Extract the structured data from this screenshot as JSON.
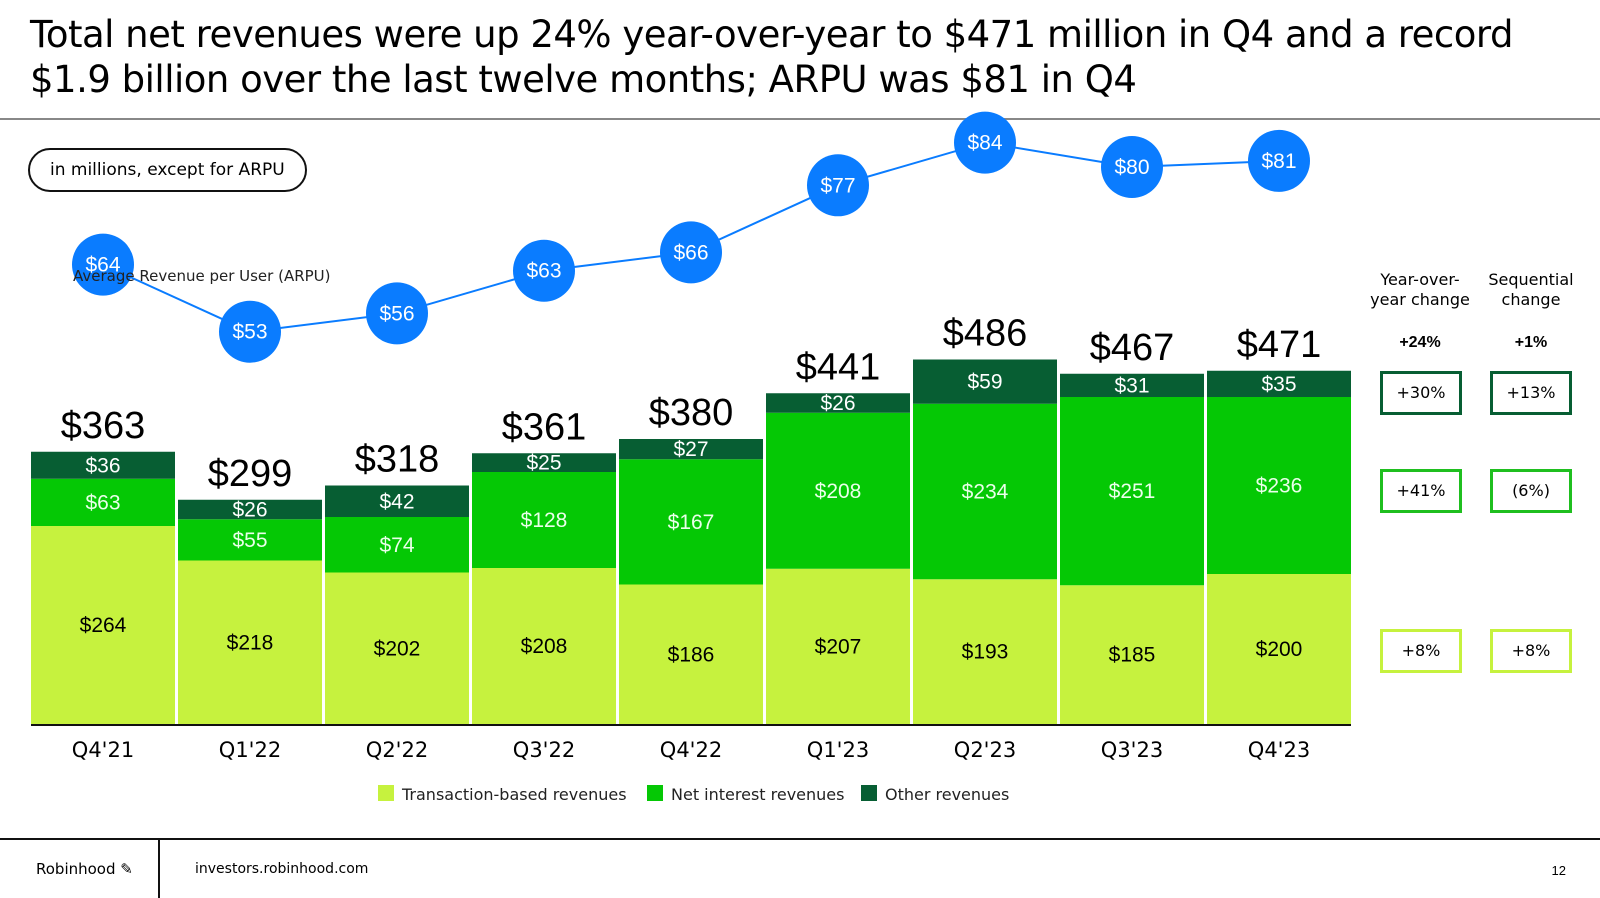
{
  "header": {
    "title_line1": "Total net revenues were up 24% year-over-year to $471 million in Q4 and a record",
    "title_line2": "$1.9 billion over the last twelve months; ARPU was $81 in Q4",
    "unit_pill": "in millions, except for ARPU"
  },
  "colors": {
    "transaction": "#c6f23e",
    "net_interest": "#05c805",
    "other": "#075e33",
    "arpu": "#0a7cff"
  },
  "changes": {
    "yoy_header": [
      "Year-over-",
      "year change"
    ],
    "seq_header": [
      "Sequential",
      "change"
    ],
    "total": {
      "yoy": "+24%",
      "seq": "+1%"
    },
    "other": {
      "yoy": "+30%",
      "seq": "+13%"
    },
    "net_interest": {
      "yoy": "+41%",
      "seq": "(6%)"
    },
    "transaction": {
      "yoy": "+8%",
      "seq": "+8%"
    }
  },
  "footer": {
    "brand": "Robinhood",
    "site": "investors.robinhood.com",
    "page": "12"
  },
  "chart_data": {
    "type": "bar",
    "stacked": true,
    "title": "",
    "categories": [
      "Q4'21",
      "Q1'22",
      "Q2'22",
      "Q3'22",
      "Q4'22",
      "Q1'23",
      "Q2'23",
      "Q3'23",
      "Q4'23"
    ],
    "series": [
      {
        "name": "Transaction-based revenues",
        "values": [
          264,
          218,
          202,
          208,
          186,
          207,
          193,
          185,
          200
        ]
      },
      {
        "name": "Net interest revenues",
        "values": [
          63,
          55,
          74,
          128,
          167,
          208,
          234,
          251,
          236
        ]
      },
      {
        "name": "Other revenues",
        "values": [
          36,
          26,
          42,
          25,
          27,
          26,
          59,
          31,
          35
        ]
      }
    ],
    "totals": [
      363,
      299,
      318,
      361,
      380,
      441,
      486,
      467,
      471
    ],
    "arpu": {
      "label": "Average Revenue per User (ARPU)",
      "values": [
        64,
        53,
        56,
        63,
        66,
        77,
        84,
        80,
        81
      ]
    },
    "legend_position": "bottom",
    "grid": false
  }
}
